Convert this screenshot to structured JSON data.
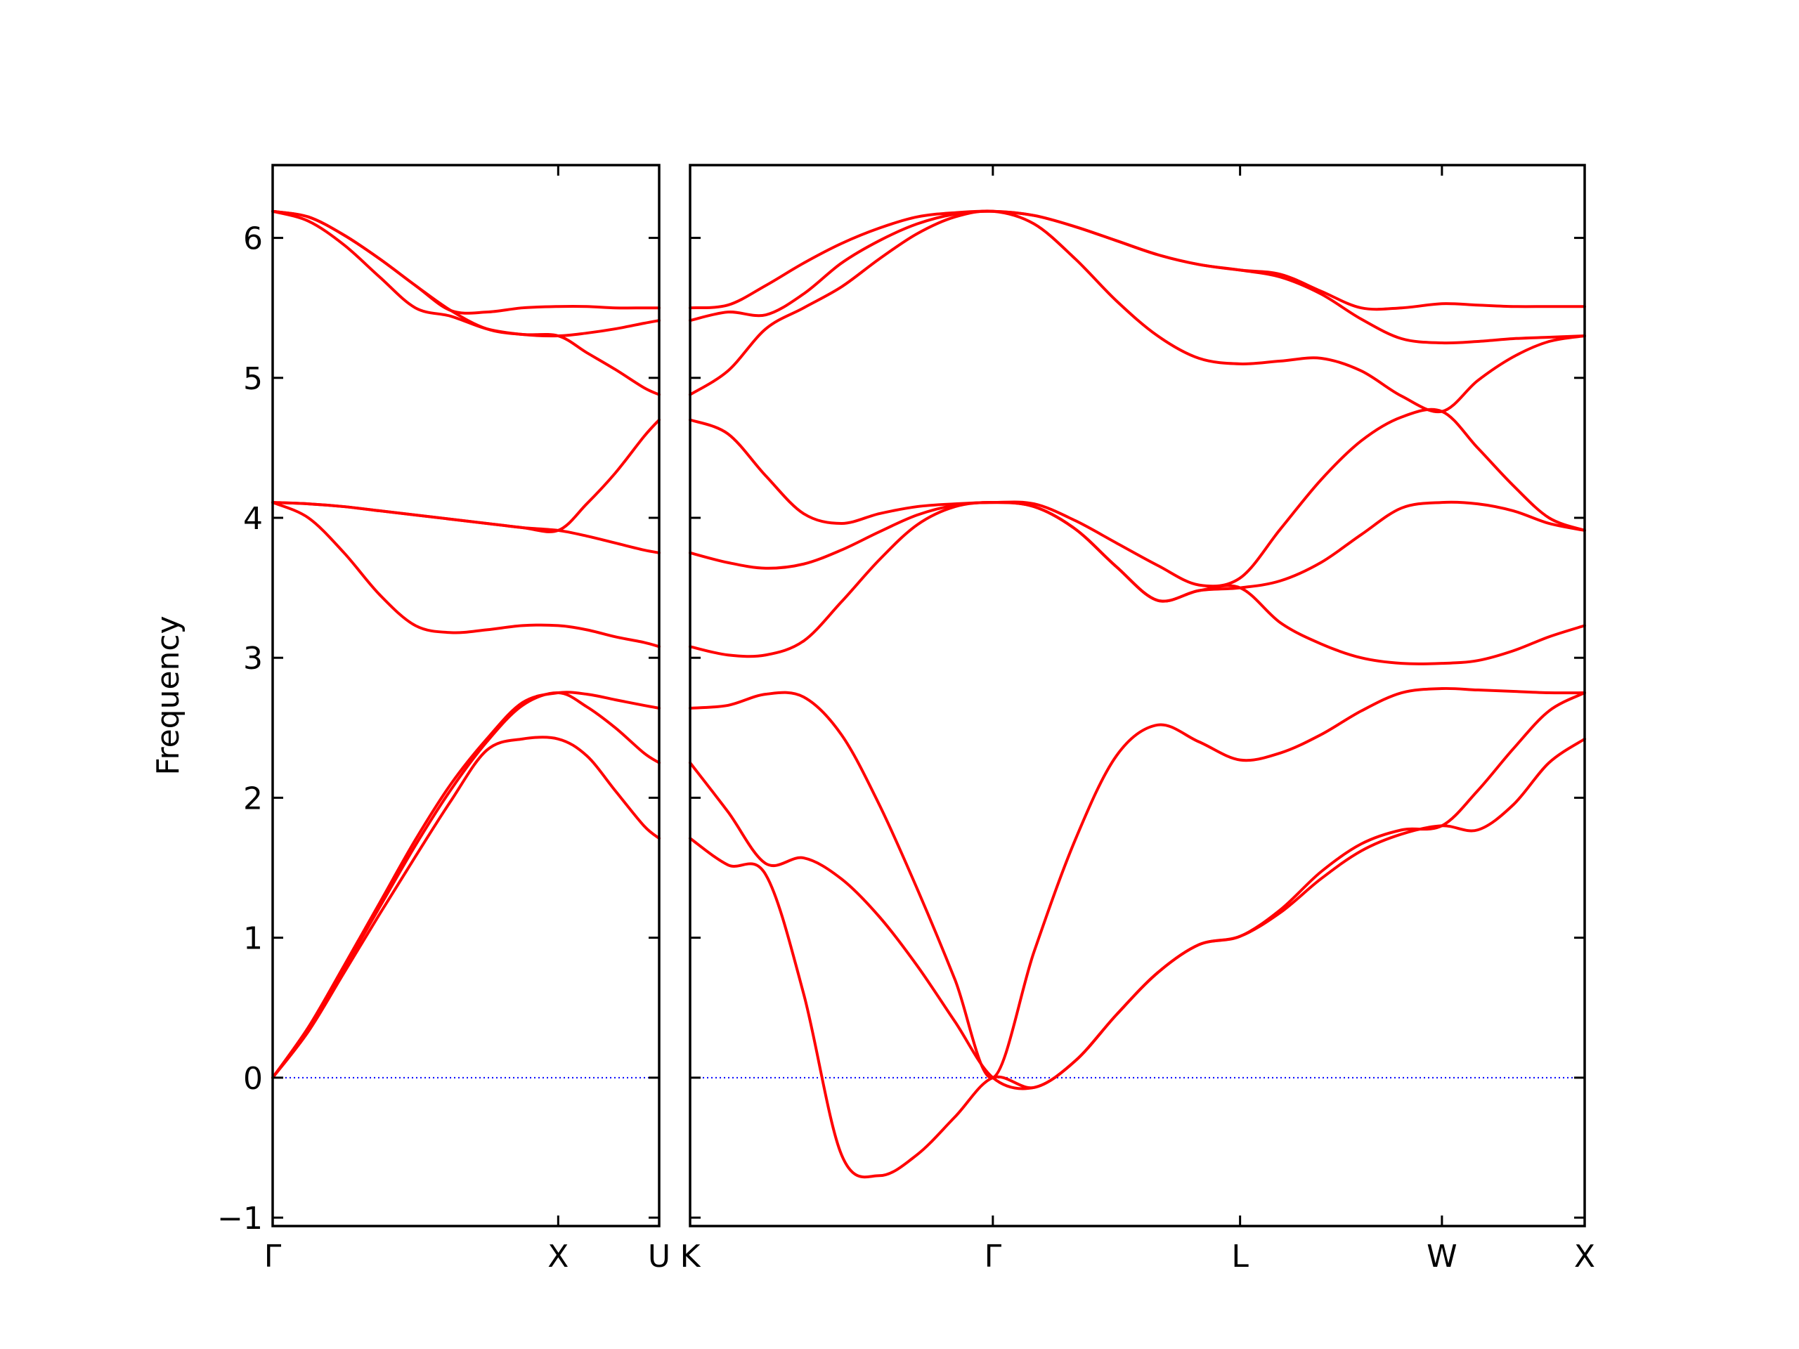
{
  "chart_data": [
    {
      "type": "line",
      "ylabel": "Frequency",
      "x": [
        0,
        0.125,
        0.25,
        0.375,
        0.5,
        0.625,
        0.75,
        0.875,
        1,
        1.1,
        1.2,
        1.3,
        1.3536
      ],
      "xlim": [
        0,
        1.3536
      ],
      "xticks": [
        {
          "value": 0,
          "label": "Γ"
        },
        {
          "value": 1,
          "label": "X"
        },
        {
          "value": 1.3536,
          "label": "U"
        }
      ],
      "ylim": [
        -1.06,
        6.52
      ],
      "yticks": [
        {
          "value": -1,
          "label": "−1"
        },
        0,
        1,
        2,
        3,
        4,
        5,
        6
      ],
      "ytick_labels": true,
      "hlines": [
        {
          "y": 0,
          "color": "#0000ff"
        }
      ],
      "series": [
        {
          "color": "#ff0000",
          "values": [
            0,
            0.33,
            0.75,
            1.17,
            1.58,
            1.98,
            2.34,
            2.42,
            2.42,
            2.3,
            2.05,
            1.8,
            1.71
          ]
        },
        {
          "color": "#ff0000",
          "values": [
            0,
            0.35,
            0.78,
            1.22,
            1.66,
            2.06,
            2.4,
            2.66,
            2.75,
            2.65,
            2.5,
            2.32,
            2.25
          ]
        },
        {
          "color": "#ff0000",
          "values": [
            0,
            0.36,
            0.8,
            1.25,
            1.7,
            2.1,
            2.42,
            2.68,
            2.75,
            2.74,
            2.7,
            2.66,
            2.64
          ]
        },
        {
          "color": "#ff0000",
          "values": [
            4.11,
            4.0,
            3.75,
            3.45,
            3.23,
            3.18,
            3.2,
            3.23,
            3.23,
            3.2,
            3.15,
            3.11,
            3.08
          ]
        },
        {
          "color": "#ff0000",
          "values": [
            4.11,
            4.1,
            4.08,
            4.05,
            4.02,
            3.99,
            3.96,
            3.93,
            3.91,
            3.87,
            3.82,
            3.77,
            3.75
          ]
        },
        {
          "color": "#ff0000",
          "values": [
            4.11,
            4.1,
            4.08,
            4.05,
            4.02,
            3.99,
            3.96,
            3.93,
            3.91,
            4.1,
            4.32,
            4.58,
            4.7
          ]
        },
        {
          "color": "#ff0000",
          "values": [
            6.19,
            6.12,
            5.95,
            5.72,
            5.5,
            5.44,
            5.35,
            5.31,
            5.3,
            5.18,
            5.06,
            4.93,
            4.88
          ]
        },
        {
          "color": "#ff0000",
          "values": [
            6.19,
            6.15,
            6.02,
            5.85,
            5.66,
            5.48,
            5.35,
            5.31,
            5.3,
            5.32,
            5.35,
            5.39,
            5.41
          ]
        },
        {
          "color": "#ff0000",
          "values": [
            6.19,
            6.15,
            6.02,
            5.85,
            5.66,
            5.48,
            5.47,
            5.5,
            5.51,
            5.51,
            5.5,
            5.5,
            5.5
          ]
        }
      ]
    },
    {
      "type": "line",
      "x": [
        1.3536,
        1.4862,
        1.6187,
        1.7513,
        1.8839,
        2.0165,
        2.149,
        2.2816,
        2.4142,
        2.5585,
        2.7029,
        2.8472,
        2.9915,
        3.1359,
        3.2802,
        3.4216,
        3.563,
        3.7045,
        3.8459,
        3.9873,
        4.1123,
        4.2373,
        4.3623,
        4.4873
      ],
      "xlim": [
        1.3536,
        4.4873
      ],
      "xticks": [
        {
          "value": 1.3536,
          "label": "K"
        },
        {
          "value": 2.4142,
          "label": "Γ"
        },
        {
          "value": 3.2802,
          "label": "L"
        },
        {
          "value": 3.9873,
          "label": "W"
        },
        {
          "value": 4.4873,
          "label": "X"
        }
      ],
      "ylim": [
        -1.06,
        6.52
      ],
      "yticks": [
        -1,
        0,
        1,
        2,
        3,
        4,
        5,
        6
      ],
      "ytick_labels": false,
      "hlines": [
        {
          "y": 0,
          "color": "#0000ff"
        }
      ],
      "series": [
        {
          "color": "#ff0000",
          "values": [
            1.71,
            1.52,
            1.45,
            0.6,
            -0.55,
            -0.7,
            -0.55,
            -0.28,
            0,
            -0.07,
            0.12,
            0.45,
            0.75,
            0.95,
            1.01,
            1.18,
            1.42,
            1.62,
            1.74,
            1.8,
            1.77,
            1.95,
            2.25,
            2.42
          ]
        },
        {
          "color": "#ff0000",
          "values": [
            2.25,
            1.9,
            1.53,
            1.57,
            1.42,
            1.15,
            0.8,
            0.4,
            0,
            -0.07,
            0.12,
            0.45,
            0.75,
            0.95,
            1.01,
            1.2,
            1.47,
            1.67,
            1.77,
            1.8,
            2.05,
            2.35,
            2.62,
            2.75
          ]
        },
        {
          "color": "#ff0000",
          "values": [
            2.64,
            2.66,
            2.74,
            2.72,
            2.45,
            1.95,
            1.35,
            0.7,
            0,
            0.9,
            1.7,
            2.3,
            2.52,
            2.4,
            2.27,
            2.32,
            2.45,
            2.62,
            2.75,
            2.78,
            2.77,
            2.76,
            2.75,
            2.75
          ]
        },
        {
          "color": "#ff0000",
          "values": [
            3.08,
            3.02,
            3.02,
            3.12,
            3.4,
            3.7,
            3.95,
            4.08,
            4.11,
            4.08,
            3.92,
            3.65,
            3.41,
            3.48,
            3.5,
            3.25,
            3.1,
            3.0,
            2.96,
            2.96,
            2.98,
            3.05,
            3.15,
            3.23
          ]
        },
        {
          "color": "#ff0000",
          "values": [
            3.75,
            3.68,
            3.64,
            3.67,
            3.77,
            3.9,
            4.02,
            4.09,
            4.11,
            4.08,
            3.92,
            3.65,
            3.41,
            3.48,
            3.5,
            3.55,
            3.68,
            3.88,
            4.07,
            4.11,
            4.1,
            4.05,
            3.96,
            3.91
          ]
        },
        {
          "color": "#ff0000",
          "values": [
            4.7,
            4.6,
            4.3,
            4.03,
            3.96,
            4.03,
            4.08,
            4.1,
            4.11,
            4.1,
            3.98,
            3.82,
            3.66,
            3.52,
            3.57,
            3.92,
            4.27,
            4.55,
            4.72,
            4.76,
            4.5,
            4.23,
            4.0,
            3.91
          ]
        },
        {
          "color": "#ff0000",
          "values": [
            4.88,
            5.05,
            5.35,
            5.5,
            5.65,
            5.85,
            6.03,
            6.15,
            6.19,
            6.1,
            5.85,
            5.55,
            5.3,
            5.14,
            5.1,
            5.12,
            5.14,
            5.05,
            4.87,
            4.76,
            4.98,
            5.15,
            5.26,
            5.3
          ]
        },
        {
          "color": "#ff0000",
          "values": [
            5.41,
            5.47,
            5.45,
            5.6,
            5.82,
            5.98,
            6.1,
            6.17,
            6.19,
            6.16,
            6.08,
            5.98,
            5.88,
            5.81,
            5.77,
            5.72,
            5.6,
            5.42,
            5.28,
            5.25,
            5.26,
            5.28,
            5.29,
            5.3
          ]
        },
        {
          "color": "#ff0000",
          "values": [
            5.5,
            5.52,
            5.66,
            5.82,
            5.96,
            6.07,
            6.15,
            6.18,
            6.19,
            6.16,
            6.08,
            5.98,
            5.88,
            5.81,
            5.77,
            5.74,
            5.62,
            5.5,
            5.5,
            5.53,
            5.52,
            5.51,
            5.51,
            5.51
          ]
        }
      ]
    }
  ]
}
